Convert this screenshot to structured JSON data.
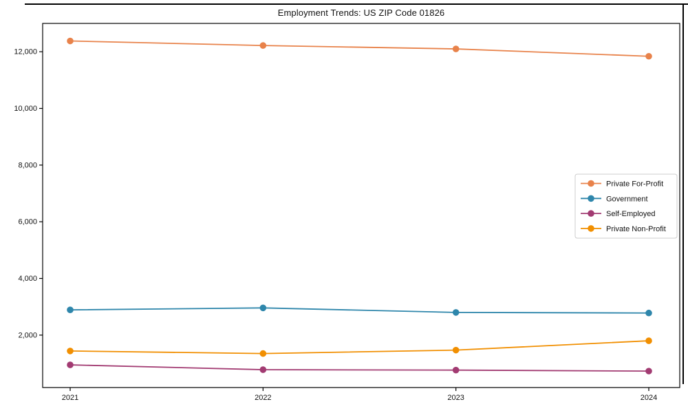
{
  "figure": {
    "title": "Employment Trends: US ZIP Code 01826"
  },
  "chart_data": {
    "type": "line",
    "title": "Employment Trends: US ZIP Code 01826",
    "x": [
      "2021",
      "2022",
      "2023",
      "2024"
    ],
    "series": [
      {
        "name": "Private For-Profit",
        "color": "#E8824A",
        "values": [
          12380,
          12220,
          12100,
          11840
        ]
      },
      {
        "name": "Government",
        "color": "#2E86AB",
        "values": [
          2890,
          2960,
          2800,
          2780
        ]
      },
      {
        "name": "Self-Employed",
        "color": "#A23B72",
        "values": [
          950,
          780,
          765,
          730
        ]
      },
      {
        "name": "Private Non-Profit",
        "color": "#F18F01",
        "values": [
          1440,
          1350,
          1470,
          1800
        ]
      }
    ],
    "xlabel": "",
    "ylabel": "",
    "ylim": [
      150,
      13000
    ],
    "yticks": [
      2000,
      4000,
      6000,
      8000,
      10000,
      12000
    ],
    "ytick_labels": [
      "2,000",
      "4,000",
      "6,000",
      "8,000",
      "10,000",
      "12,000"
    ],
    "grid": false,
    "legend_position": "center right",
    "marker": "circle",
    "frame_color": "#000000",
    "text_color": "#111111",
    "legend_border_color": "#cccccc"
  }
}
